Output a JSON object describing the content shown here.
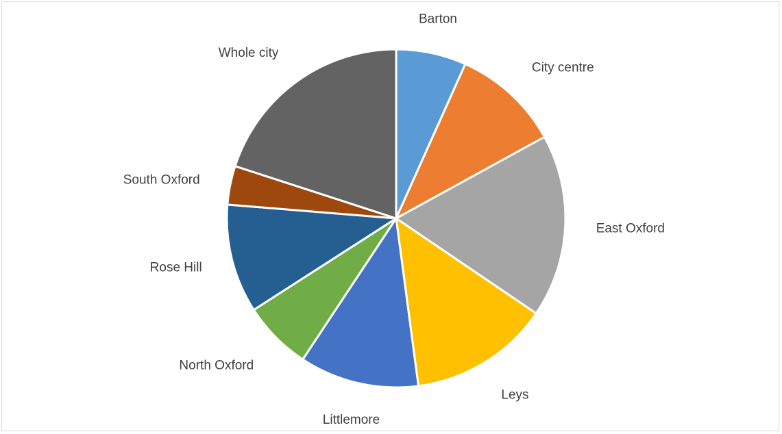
{
  "chart_data": {
    "type": "pie",
    "title": "",
    "legend": "none",
    "start_angle_deg": 0,
    "direction": "clockwise",
    "categories": [
      "Barton",
      "City centre",
      "East Oxford",
      "Leys",
      "Littlemore",
      "North Oxford",
      "Rose Hill",
      "South Oxford",
      "Whole city"
    ],
    "values": [
      6.7,
      10.3,
      17.5,
      13.4,
      11.4,
      6.6,
      10.4,
      3.7,
      20.0
    ],
    "colors": [
      "#5b9bd5",
      "#ed7d31",
      "#a5a5a5",
      "#ffc000",
      "#4472c4",
      "#70ad47",
      "#255e91",
      "#9e480e",
      "#636363"
    ]
  }
}
